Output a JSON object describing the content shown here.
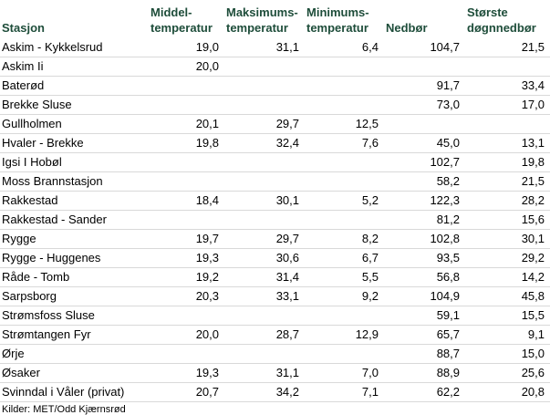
{
  "table": {
    "headers": [
      [
        "Stasjon"
      ],
      [
        "Middel-",
        "temperatur"
      ],
      [
        "Maksimums-",
        "temperatur"
      ],
      [
        "Minimums-",
        "temperatur"
      ],
      [
        "Nedbør"
      ],
      [
        "Største",
        "døgnnedbør"
      ]
    ],
    "rows": [
      [
        "Askim - Kykkelsrud",
        "19,0",
        "31,1",
        "6,4",
        "104,7",
        "21,5"
      ],
      [
        "Askim Ii",
        "20,0",
        null,
        null,
        null,
        null
      ],
      [
        "Baterød",
        null,
        null,
        null,
        "91,7",
        "33,4"
      ],
      [
        "Brekke Sluse",
        null,
        null,
        null,
        "73,0",
        "17,0"
      ],
      [
        "Gullholmen",
        "20,1",
        "29,7",
        "12,5",
        null,
        null
      ],
      [
        "Hvaler - Brekke",
        "19,8",
        "32,4",
        "7,6",
        "45,0",
        "13,1"
      ],
      [
        "Igsi I Hobøl",
        null,
        null,
        null,
        "102,7",
        "19,8"
      ],
      [
        "Moss Brannstasjon",
        null,
        null,
        null,
        "58,2",
        "21,5"
      ],
      [
        "Rakkestad",
        "18,4",
        "30,1",
        "5,2",
        "122,3",
        "28,2"
      ],
      [
        "Rakkestad - Sander",
        null,
        null,
        null,
        "81,2",
        "15,6"
      ],
      [
        "Rygge",
        "19,7",
        "29,7",
        "8,2",
        "102,8",
        "30,1"
      ],
      [
        "Rygge - Huggenes",
        "19,3",
        "30,6",
        "6,7",
        "93,5",
        "29,2"
      ],
      [
        "Råde - Tomb",
        "19,2",
        "31,4",
        "5,5",
        "56,8",
        "14,2"
      ],
      [
        "Sarpsborg",
        "20,3",
        "33,1",
        "9,2",
        "104,9",
        "45,8"
      ],
      [
        "Strømsfoss Sluse",
        null,
        null,
        null,
        "59,1",
        "15,5"
      ],
      [
        "Strømtangen Fyr",
        "20,0",
        "28,7",
        "12,9",
        "65,7",
        "9,1"
      ],
      [
        "Ørje",
        null,
        null,
        null,
        "88,7",
        "15,0"
      ],
      [
        "Øsaker",
        "19,3",
        "31,1",
        "7,0",
        "88,9",
        "25,6"
      ],
      [
        "Svinndal i Våler (privat)",
        "20,7",
        "34,2",
        "7,1",
        "62,2",
        "20,8"
      ]
    ],
    "footer": "Kilder: MET/Odd Kjærnsrød"
  }
}
